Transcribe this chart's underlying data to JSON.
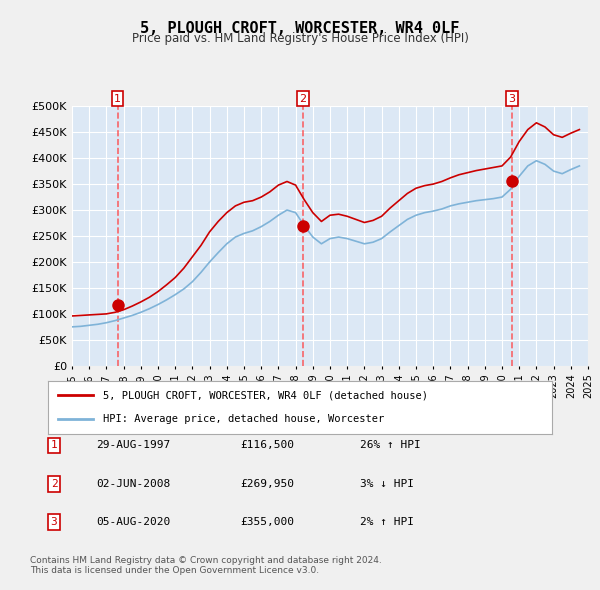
{
  "title": "5, PLOUGH CROFT, WORCESTER, WR4 0LF",
  "subtitle": "Price paid vs. HM Land Registry's House Price Index (HPI)",
  "ylabel": "",
  "ylim": [
    0,
    500000
  ],
  "yticks": [
    0,
    50000,
    100000,
    150000,
    200000,
    250000,
    300000,
    350000,
    400000,
    450000,
    500000
  ],
  "background_color": "#e8f0f8",
  "plot_bg_color": "#dce8f5",
  "grid_color": "#ffffff",
  "sale_dates": [
    1997.66,
    2008.42,
    2020.59
  ],
  "sale_prices": [
    116500,
    269950,
    355000
  ],
  "sale_labels": [
    "1",
    "2",
    "3"
  ],
  "legend_red": "5, PLOUGH CROFT, WORCESTER, WR4 0LF (detached house)",
  "legend_blue": "HPI: Average price, detached house, Worcester",
  "table_rows": [
    [
      "1",
      "29-AUG-1997",
      "£116,500",
      "26% ↑ HPI"
    ],
    [
      "2",
      "02-JUN-2008",
      "£269,950",
      "3% ↓ HPI"
    ],
    [
      "3",
      "05-AUG-2020",
      "£355,000",
      "2% ↑ HPI"
    ]
  ],
  "footnote": "Contains HM Land Registry data © Crown copyright and database right 2024.\nThis data is licensed under the Open Government Licence v3.0.",
  "hpi_years": [
    1995.0,
    1995.5,
    1996.0,
    1996.5,
    1997.0,
    1997.5,
    1998.0,
    1998.5,
    1999.0,
    1999.5,
    2000.0,
    2000.5,
    2001.0,
    2001.5,
    2002.0,
    2002.5,
    2003.0,
    2003.5,
    2004.0,
    2004.5,
    2005.0,
    2005.5,
    2006.0,
    2006.5,
    2007.0,
    2007.5,
    2008.0,
    2008.5,
    2009.0,
    2009.5,
    2010.0,
    2010.5,
    2011.0,
    2011.5,
    2012.0,
    2012.5,
    2013.0,
    2013.5,
    2014.0,
    2014.5,
    2015.0,
    2015.5,
    2016.0,
    2016.5,
    2017.0,
    2017.5,
    2018.0,
    2018.5,
    2019.0,
    2019.5,
    2020.0,
    2020.5,
    2021.0,
    2021.5,
    2022.0,
    2022.5,
    2023.0,
    2023.5,
    2024.0,
    2024.5
  ],
  "hpi_values": [
    75000,
    76000,
    78000,
    80000,
    83000,
    87000,
    92000,
    97000,
    103000,
    110000,
    118000,
    127000,
    137000,
    148000,
    162000,
    180000,
    200000,
    218000,
    235000,
    248000,
    255000,
    260000,
    268000,
    278000,
    290000,
    300000,
    295000,
    270000,
    248000,
    235000,
    245000,
    248000,
    245000,
    240000,
    235000,
    238000,
    245000,
    258000,
    270000,
    282000,
    290000,
    295000,
    298000,
    302000,
    308000,
    312000,
    315000,
    318000,
    320000,
    322000,
    325000,
    340000,
    365000,
    385000,
    395000,
    388000,
    375000,
    370000,
    378000,
    385000
  ],
  "red_years": [
    1995.0,
    1995.5,
    1996.0,
    1996.5,
    1997.0,
    1997.5,
    1998.0,
    1998.5,
    1999.0,
    1999.5,
    2000.0,
    2000.5,
    2001.0,
    2001.5,
    2002.0,
    2002.5,
    2003.0,
    2003.5,
    2004.0,
    2004.5,
    2005.0,
    2005.5,
    2006.0,
    2006.5,
    2007.0,
    2007.5,
    2008.0,
    2008.5,
    2009.0,
    2009.5,
    2010.0,
    2010.5,
    2011.0,
    2011.5,
    2012.0,
    2012.5,
    2013.0,
    2013.5,
    2014.0,
    2014.5,
    2015.0,
    2015.5,
    2016.0,
    2016.5,
    2017.0,
    2017.5,
    2018.0,
    2018.5,
    2019.0,
    2019.5,
    2020.0,
    2020.5,
    2021.0,
    2021.5,
    2022.0,
    2022.5,
    2023.0,
    2023.5,
    2024.0,
    2024.5
  ],
  "red_values": [
    96000,
    97000,
    98000,
    99000,
    100000,
    103000,
    108000,
    115000,
    123000,
    132000,
    143000,
    156000,
    170000,
    188000,
    210000,
    232000,
    258000,
    278000,
    295000,
    308000,
    315000,
    318000,
    325000,
    335000,
    348000,
    355000,
    348000,
    320000,
    295000,
    278000,
    290000,
    292000,
    288000,
    282000,
    276000,
    280000,
    288000,
    304000,
    318000,
    332000,
    342000,
    347000,
    350000,
    355000,
    362000,
    368000,
    372000,
    376000,
    379000,
    382000,
    385000,
    402000,
    432000,
    455000,
    468000,
    460000,
    445000,
    440000,
    448000,
    455000
  ],
  "xmin": 1995,
  "xmax": 2025,
  "xticks": [
    1995,
    1996,
    1997,
    1998,
    1999,
    2000,
    2001,
    2002,
    2003,
    2004,
    2005,
    2006,
    2007,
    2008,
    2009,
    2010,
    2011,
    2012,
    2013,
    2014,
    2015,
    2016,
    2017,
    2018,
    2019,
    2020,
    2021,
    2022,
    2023,
    2024,
    2025
  ]
}
